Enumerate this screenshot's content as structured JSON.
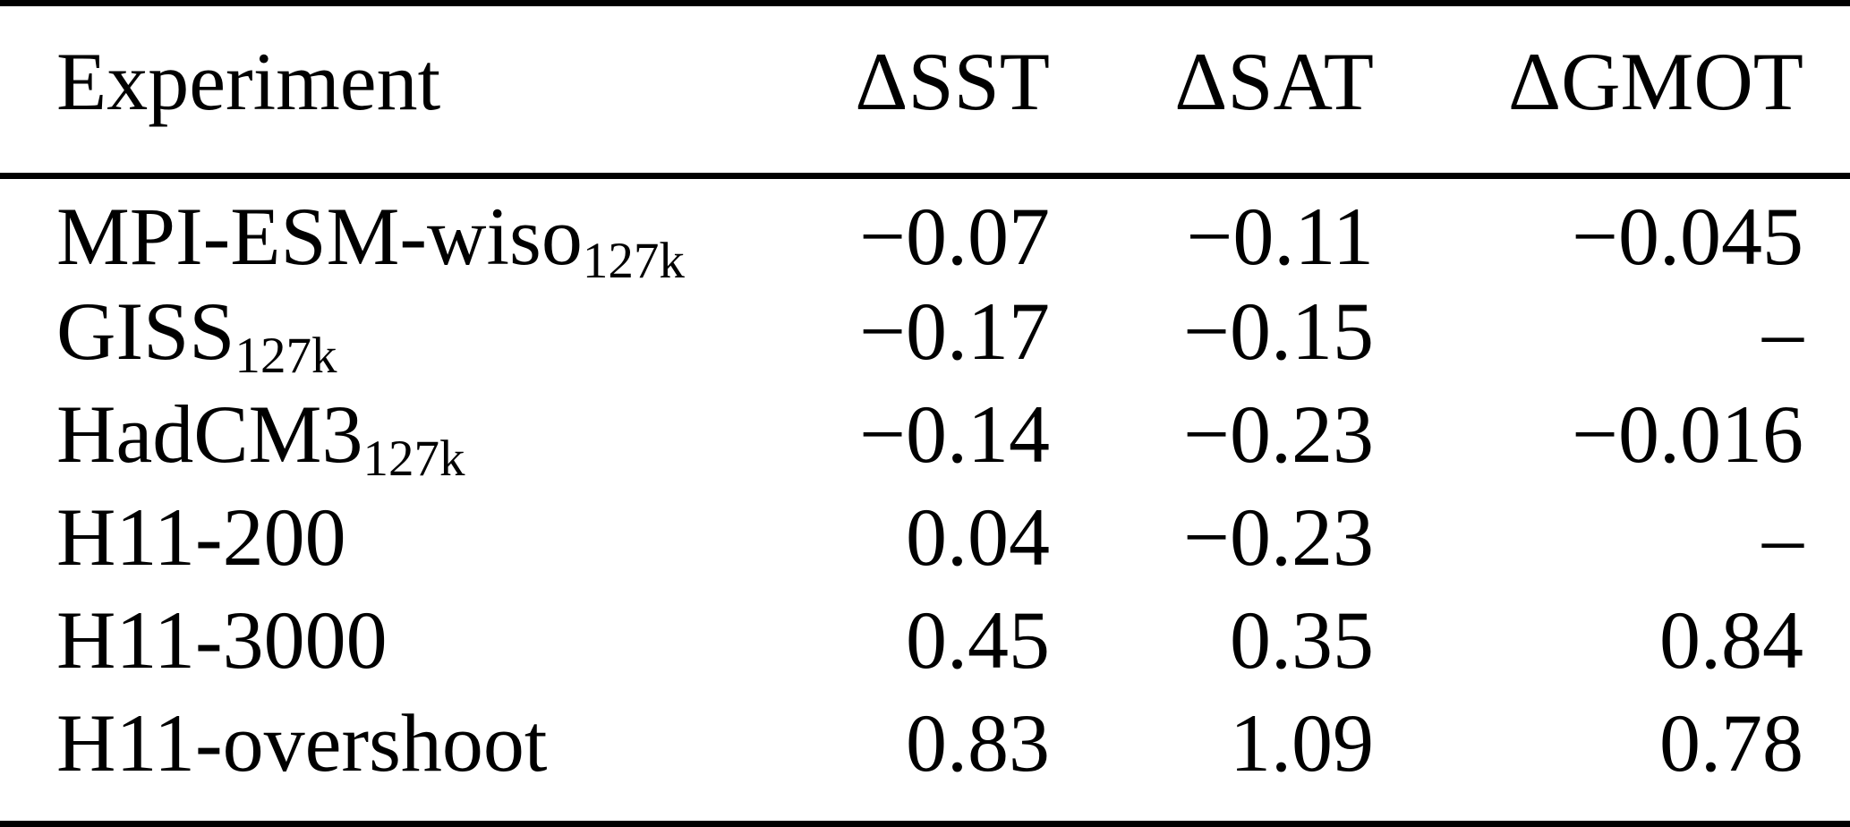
{
  "table": {
    "columns": [
      "Experiment",
      "ΔSST",
      "ΔSAT",
      "ΔGMOT"
    ],
    "rows": [
      {
        "experiment": "MPI-ESM-wiso",
        "subscript": "127k",
        "sst": "−0.07",
        "sat": "−0.11",
        "gmot": "−0.045"
      },
      {
        "experiment": "GISS",
        "subscript": "127k",
        "sst": "−0.17",
        "sat": "−0.15",
        "gmot": "–"
      },
      {
        "experiment": "HadCM3",
        "subscript": "127k",
        "sst": "−0.14",
        "sat": "−0.23",
        "gmot": "−0.016"
      },
      {
        "experiment": "H11-200",
        "subscript": "",
        "sst": "0.04",
        "sat": "−0.23",
        "gmot": "–"
      },
      {
        "experiment": "H11-3000",
        "subscript": "",
        "sst": "0.45",
        "sat": "0.35",
        "gmot": "0.84"
      },
      {
        "experiment": "H11-overshoot",
        "subscript": "",
        "sst": "0.83",
        "sat": "1.09",
        "gmot": "0.78"
      }
    ],
    "colors": {
      "text": "#000000",
      "background": "#ffffff",
      "rule": "#000000"
    }
  }
}
